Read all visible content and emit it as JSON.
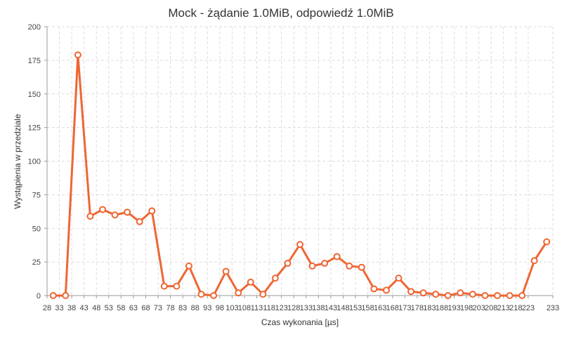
{
  "chart_data": {
    "type": "line",
    "title": "Mock - żądanie 1.0MiB, odpowiedź 1.0MiB",
    "xlabel": "Czas wykonania [µs]",
    "ylabel": "Wystąpienia w przedziale",
    "ylim": [
      0,
      200
    ],
    "y_ticks": [
      "0",
      "25",
      "50",
      "75",
      "100",
      "125",
      "150",
      "175",
      "200"
    ],
    "x_ticks": [
      "28",
      "33",
      "38",
      "43",
      "48",
      "53",
      "58",
      "63",
      "68",
      "73",
      "78",
      "83",
      "88",
      "93",
      "98",
      "103",
      "108",
      "113",
      "118",
      "123",
      "128",
      "133",
      "138",
      "143",
      "148",
      "153",
      "158",
      "163",
      "168",
      "173",
      "178",
      "183",
      "188",
      "193",
      "198",
      "203",
      "208",
      "213",
      "218",
      "223",
      "233"
    ],
    "grid": true,
    "color": "#EE6633",
    "series": [
      {
        "x": [
          30.5,
          35.5,
          40.5,
          45.5,
          50.5,
          55.5,
          60.5,
          65.5,
          70.5,
          75.5,
          80.5,
          85.5,
          90.5,
          95.5,
          100.5,
          105.5,
          110.5,
          115.5,
          120.5,
          125.5,
          130.5,
          135.5,
          140.5,
          145.5,
          150.5,
          155.5,
          160.5,
          165.5,
          170.5,
          175.5,
          180.5,
          185.5,
          190.5,
          195.5,
          200.5,
          205.5,
          210.5,
          215.5,
          220.5,
          225.5,
          230.5
        ],
        "values": [
          0,
          0,
          179,
          59,
          64,
          60,
          62,
          55,
          63,
          7,
          7,
          22,
          1,
          0,
          18,
          2,
          10,
          1,
          13,
          24,
          38,
          22,
          24,
          29,
          22,
          21,
          5,
          4,
          13,
          3,
          2,
          1,
          0,
          2,
          1,
          0,
          0,
          0,
          0,
          26,
          40
        ]
      }
    ]
  }
}
